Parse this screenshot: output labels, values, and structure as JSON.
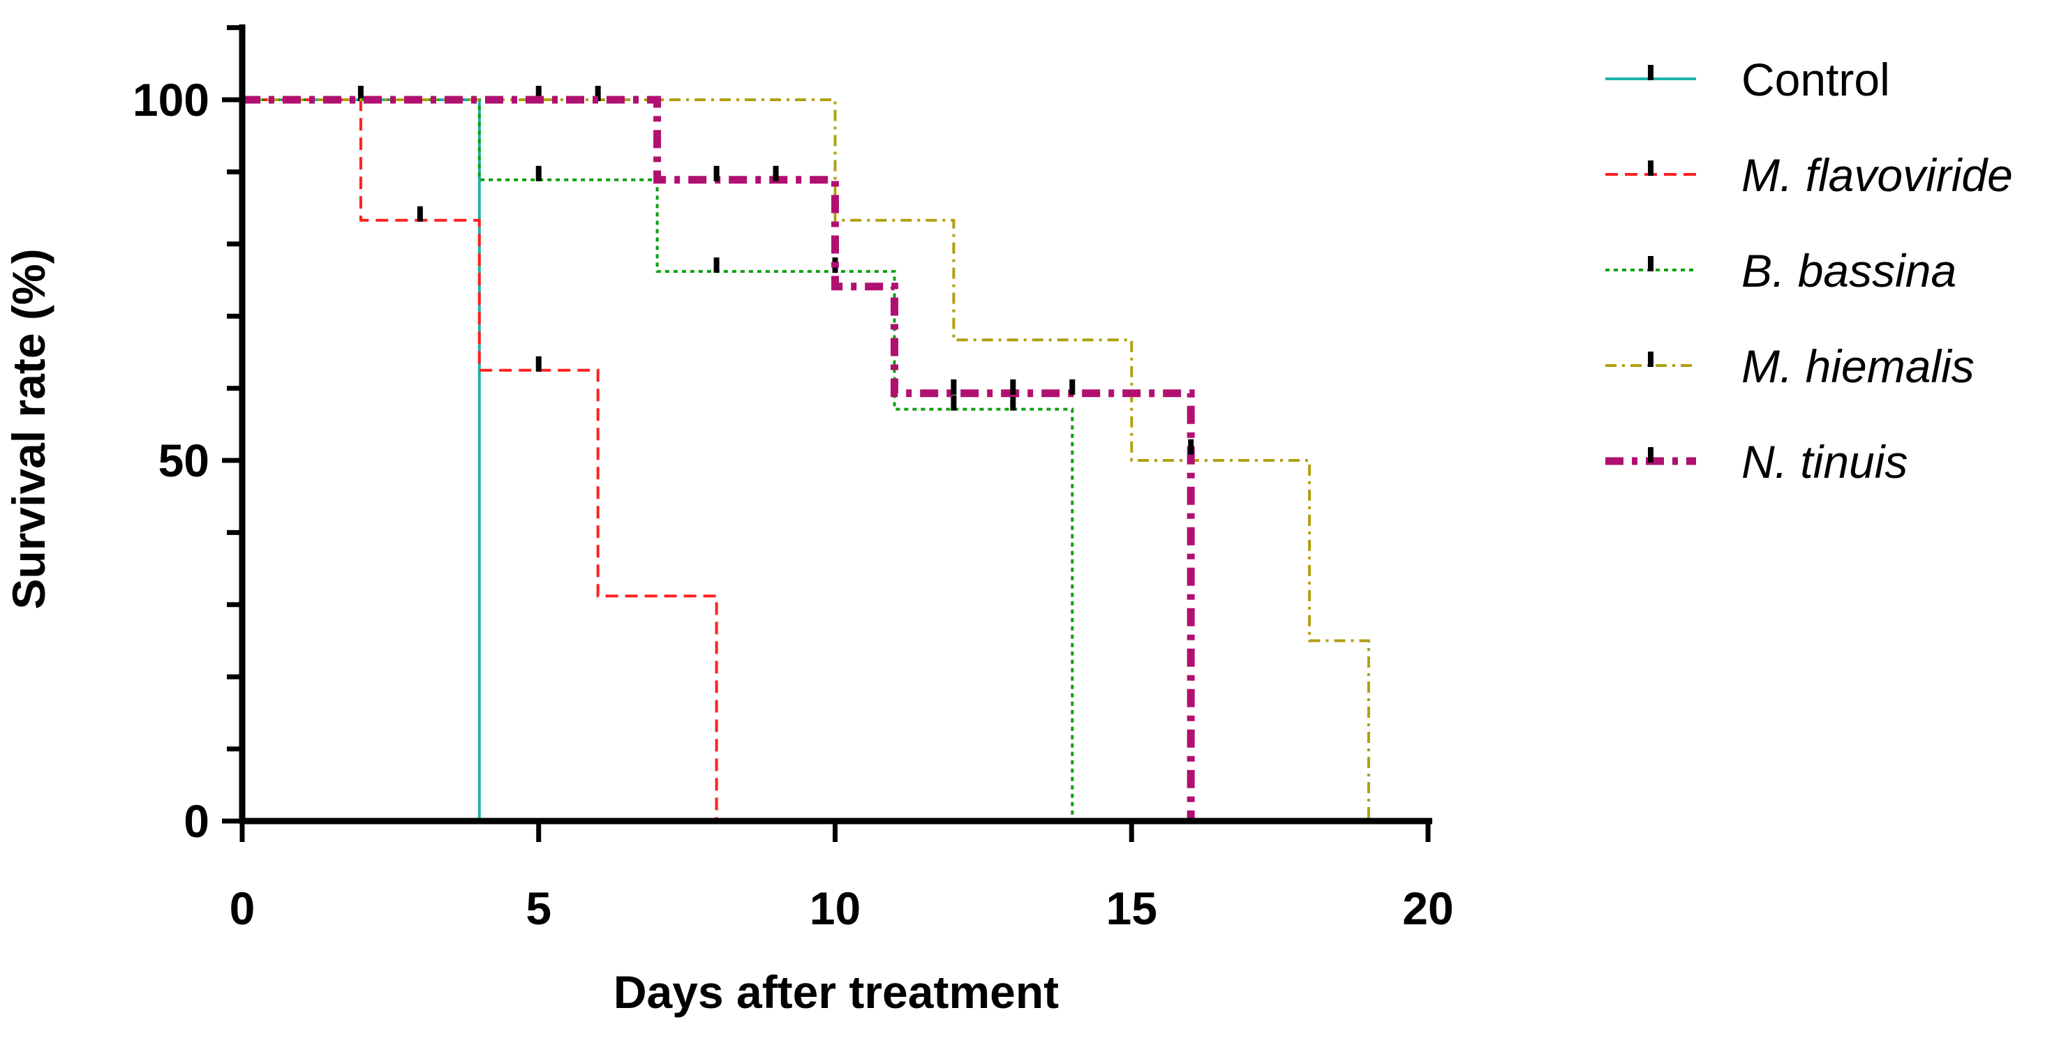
{
  "chart_data": {
    "type": "line",
    "subtype": "kaplan-meier-step",
    "title": "",
    "xlabel": "Days after treatment",
    "ylabel": "Survival rate (%)",
    "xlim": [
      0,
      20
    ],
    "ylim": [
      0,
      110
    ],
    "x_ticks": [
      "0",
      "5",
      "10",
      "15",
      "20"
    ],
    "y_ticks": [
      "0",
      "50",
      "100"
    ],
    "x_tick_values": [
      0,
      5,
      10,
      15,
      20
    ],
    "y_tick_values": [
      0,
      50,
      100
    ],
    "y_minor_step": 10,
    "x_minor_step": 1,
    "grid": false,
    "legend_position": "right",
    "series": [
      {
        "name": "Control",
        "italic": false,
        "color": "#20b2aa",
        "dash": "solid",
        "width": 4,
        "steps": [
          [
            0,
            100
          ],
          [
            4,
            100
          ],
          [
            4,
            0
          ]
        ],
        "censored": [
          [
            2,
            100
          ]
        ]
      },
      {
        "name": "M. flavoviride",
        "italic": true,
        "color": "#ff2020",
        "dash": "dashed",
        "width": 4,
        "steps": [
          [
            0,
            100
          ],
          [
            2,
            100
          ],
          [
            2,
            83.3
          ],
          [
            4,
            83.3
          ],
          [
            4,
            62.5
          ],
          [
            6,
            62.5
          ],
          [
            6,
            31.2
          ],
          [
            8,
            31.2
          ],
          [
            8,
            0
          ]
        ],
        "censored": [
          [
            3,
            83.3
          ],
          [
            5,
            62.5
          ]
        ]
      },
      {
        "name": "B. bassina",
        "italic": true,
        "color": "#10a010",
        "dash": "dotted",
        "width": 4,
        "steps": [
          [
            0,
            100
          ],
          [
            4,
            100
          ],
          [
            4,
            88.9
          ],
          [
            7,
            88.9
          ],
          [
            7,
            76.2
          ],
          [
            11,
            76.2
          ],
          [
            11,
            57.1
          ],
          [
            14,
            57.1
          ],
          [
            14,
            0
          ]
        ],
        "censored": [
          [
            5,
            88.9
          ],
          [
            8,
            76.2
          ],
          [
            10,
            76.2
          ],
          [
            12,
            57.1
          ],
          [
            13,
            57.1
          ]
        ]
      },
      {
        "name": "M. hiemalis",
        "italic": true,
        "color": "#b0a010",
        "dash": "dashdot",
        "width": 4,
        "steps": [
          [
            0,
            100
          ],
          [
            10,
            100
          ],
          [
            10,
            83.3
          ],
          [
            12,
            83.3
          ],
          [
            12,
            66.7
          ],
          [
            15,
            66.7
          ],
          [
            15,
            50
          ],
          [
            18,
            50
          ],
          [
            18,
            25
          ],
          [
            19,
            25
          ],
          [
            19,
            0
          ]
        ],
        "censored": [
          [
            5,
            100
          ],
          [
            6,
            100
          ]
        ]
      },
      {
        "name": "N. tinuis",
        "italic": true,
        "color": "#b01070",
        "dash": "thick-dashdot",
        "width": 11,
        "steps": [
          [
            0,
            100
          ],
          [
            7,
            100
          ],
          [
            7,
            88.9
          ],
          [
            10,
            88.9
          ],
          [
            10,
            74.1
          ],
          [
            11,
            74.1
          ],
          [
            11,
            59.3
          ],
          [
            16,
            59.3
          ],
          [
            16,
            0
          ]
        ],
        "censored": [
          [
            8,
            88.9
          ],
          [
            9,
            88.9
          ],
          [
            12,
            59.3
          ],
          [
            13,
            59.3
          ],
          [
            14,
            59.3
          ],
          [
            16,
            51
          ]
        ]
      }
    ]
  }
}
